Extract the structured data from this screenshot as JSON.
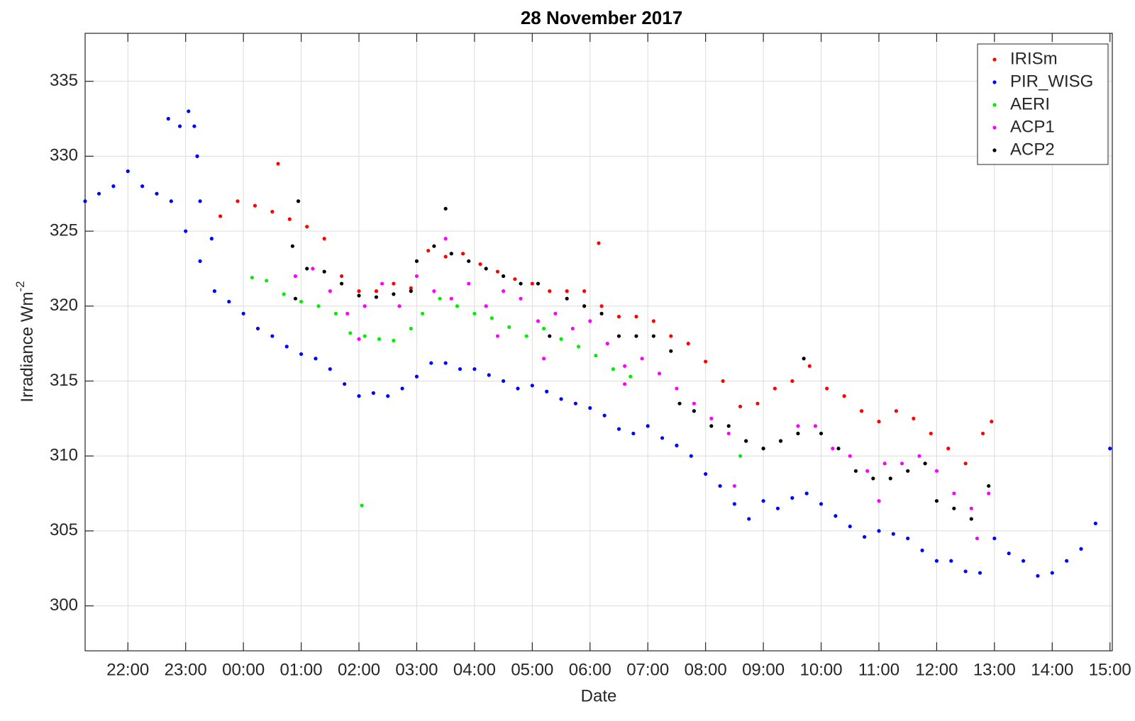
{
  "chart_data": {
    "type": "scatter",
    "title": "28 November 2017",
    "xlabel": "Date",
    "ylabel": "Irradiance Wm",
    "ylabel_superscript": "-2",
    "xlim": [
      -2.74,
      15.04
    ],
    "ylim": [
      297,
      338.2
    ],
    "xticks": [
      {
        "value": -2,
        "label": "22:00"
      },
      {
        "value": -1,
        "label": "23:00"
      },
      {
        "value": 0,
        "label": "00:00"
      },
      {
        "value": 1,
        "label": "01:00"
      },
      {
        "value": 2,
        "label": "02:00"
      },
      {
        "value": 3,
        "label": "03:00"
      },
      {
        "value": 4,
        "label": "04:00"
      },
      {
        "value": 5,
        "label": "05:00"
      },
      {
        "value": 6,
        "label": "06:00"
      },
      {
        "value": 7,
        "label": "07:00"
      },
      {
        "value": 8,
        "label": "08:00"
      },
      {
        "value": 9,
        "label": "09:00"
      },
      {
        "value": 10,
        "label": "10:00"
      },
      {
        "value": 11,
        "label": "11:00"
      },
      {
        "value": 12,
        "label": "12:00"
      },
      {
        "value": 13,
        "label": "13:00"
      },
      {
        "value": 14,
        "label": "14:00"
      },
      {
        "value": 15,
        "label": "15:00"
      }
    ],
    "yticks": [
      300,
      305,
      310,
      315,
      320,
      325,
      330,
      335
    ],
    "grid": true,
    "legend": "northeast",
    "series": [
      {
        "name": "IRISm",
        "color": "#ff0000",
        "x": [
          -0.4,
          -0.1,
          0.2,
          0.5,
          0.8,
          1.1,
          1.4,
          1.7,
          2.0,
          2.3,
          2.6,
          2.9,
          3.2,
          3.5,
          3.8,
          4.1,
          4.4,
          4.7,
          5.0,
          5.3,
          5.6,
          5.9,
          6.2,
          6.5,
          6.8,
          7.1,
          7.4,
          7.7,
          8.0,
          8.3,
          8.6,
          8.9,
          9.2,
          9.5,
          9.8,
          10.1,
          10.4,
          10.7,
          11.0,
          11.3,
          11.6,
          11.9,
          12.2,
          12.5,
          12.8,
          12.95,
          0.6,
          6.15
        ],
        "values": [
          326,
          327,
          326.7,
          326.3,
          325.8,
          325.3,
          324.5,
          322,
          321,
          321,
          321.5,
          321.2,
          323.7,
          323.3,
          323.5,
          322.8,
          322.3,
          321.8,
          321.5,
          321,
          321,
          321,
          320,
          319.3,
          319.3,
          319,
          318,
          317.5,
          316.3,
          315,
          313.3,
          313.5,
          314.5,
          315,
          316,
          314.5,
          314,
          313,
          312.3,
          313,
          312.5,
          311.5,
          310.5,
          309.5,
          311.5,
          312.3,
          329.5,
          324.2
        ]
      },
      {
        "name": "PIR_WISG",
        "color": "#0000ff",
        "x": [
          -2.74,
          -2.5,
          -2.25,
          -2,
          -1.75,
          -1.5,
          -1.25,
          -1.0,
          -0.75,
          -0.5,
          -0.25,
          0,
          0.25,
          0.5,
          0.75,
          1.0,
          1.25,
          1.5,
          1.75,
          2.0,
          2.25,
          2.5,
          2.75,
          3.0,
          3.25,
          3.5,
          3.75,
          4.0,
          4.25,
          4.5,
          4.75,
          5.0,
          5.25,
          5.5,
          5.75,
          6.0,
          6.25,
          6.5,
          6.75,
          7.0,
          7.25,
          7.5,
          7.75,
          8.0,
          8.25,
          8.5,
          8.75,
          9.0,
          9.25,
          9.5,
          9.75,
          10.0,
          10.25,
          10.5,
          10.75,
          11.0,
          11.25,
          11.5,
          11.75,
          12.0,
          12.25,
          12.5,
          12.75,
          13.0,
          13.25,
          13.5,
          13.75,
          14.0,
          14.25,
          14.5,
          14.75,
          15.0,
          -1.3,
          -1.1,
          -0.95,
          -0.85,
          -0.8,
          -0.75,
          -0.55
        ],
        "values": [
          327,
          327.5,
          328,
          329,
          328,
          327.5,
          327,
          325,
          323,
          321,
          320.3,
          319.5,
          318.5,
          318,
          317.3,
          316.8,
          316.5,
          315.8,
          314.8,
          314,
          314.2,
          314,
          314.5,
          315.3,
          316.2,
          316.2,
          315.8,
          315.8,
          315.4,
          315,
          314.5,
          314.7,
          314.3,
          313.8,
          313.5,
          313.2,
          312.7,
          311.8,
          311.5,
          312,
          311.2,
          310.7,
          310,
          308.8,
          308,
          306.8,
          305.8,
          307,
          306.5,
          307.2,
          307.5,
          306.8,
          306,
          305.3,
          304.6,
          305,
          304.8,
          304.5,
          303.7,
          303,
          303,
          302.3,
          302.2,
          304.5,
          303.5,
          303,
          302,
          302.2,
          303,
          303.8,
          305.5,
          310.5,
          332.5,
          332,
          333,
          332,
          330,
          327,
          324.5
        ]
      },
      {
        "name": "AERI",
        "color": "#00ee00",
        "x": [
          0.15,
          0.4,
          0.7,
          1.0,
          1.3,
          1.6,
          1.85,
          2.1,
          2.35,
          2.6,
          2.9,
          3.1,
          3.4,
          3.7,
          4.0,
          4.3,
          4.6,
          4.9,
          5.2,
          5.5,
          5.8,
          6.1,
          6.4,
          6.7,
          2.05,
          8.6
        ],
        "values": [
          321.9,
          321.7,
          320.8,
          320.3,
          320,
          319.5,
          318.2,
          318,
          317.8,
          317.7,
          318.5,
          319.5,
          320.5,
          320,
          319.5,
          319.2,
          318.6,
          318,
          318.5,
          317.8,
          317.3,
          316.7,
          315.8,
          315.3,
          306.7,
          310
        ]
      },
      {
        "name": "ACP1",
        "color": "#ff00ff",
        "x": [
          0.9,
          1.2,
          1.5,
          1.8,
          2.1,
          2.4,
          2.7,
          3.0,
          3.3,
          3.6,
          3.9,
          4.2,
          4.5,
          4.8,
          5.1,
          5.4,
          5.7,
          6.0,
          6.3,
          6.6,
          6.9,
          7.2,
          7.5,
          7.8,
          8.1,
          8.4,
          8.7,
          9.0,
          9.3,
          9.6,
          9.9,
          10.2,
          10.5,
          10.8,
          11.1,
          11.4,
          11.7,
          12.0,
          12.3,
          12.6,
          12.9,
          2.0,
          3.5,
          4.4,
          5.2,
          6.6,
          8.5,
          11.0,
          12.7
        ],
        "values": [
          322,
          322.5,
          321,
          319.5,
          320,
          321.5,
          320,
          322,
          321,
          320.5,
          321.5,
          320,
          321,
          320.5,
          319,
          319.5,
          318.5,
          319,
          317.5,
          316,
          316.5,
          315.5,
          314.5,
          313.5,
          312.5,
          311.5,
          311,
          310.5,
          311,
          312,
          312,
          310.5,
          310,
          309,
          309.5,
          309.5,
          310,
          309,
          307.5,
          306.5,
          307.5,
          317.8,
          324.5,
          318,
          316.5,
          314.8,
          308,
          307,
          304.5
        ]
      },
      {
        "name": "ACP2",
        "color": "#000000",
        "x": [
          0.85,
          0.9,
          1.1,
          1.4,
          1.7,
          2.0,
          2.3,
          2.6,
          2.9,
          3.0,
          3.3,
          3.6,
          3.9,
          4.2,
          4.5,
          4.8,
          5.1,
          5.3,
          5.6,
          5.9,
          6.2,
          6.5,
          6.8,
          7.1,
          7.4,
          7.55,
          7.8,
          8.1,
          8.4,
          8.7,
          9.0,
          9.3,
          9.6,
          9.7,
          10.0,
          10.3,
          10.6,
          10.9,
          11.2,
          11.5,
          11.8,
          12.0,
          12.3,
          12.6,
          12.9,
          3.5,
          0.95
        ],
        "values": [
          324,
          320.5,
          322.5,
          322.3,
          321.5,
          320.7,
          320.6,
          320.8,
          321,
          323,
          324,
          323.5,
          323,
          322.5,
          322,
          321.5,
          321.5,
          318,
          320.5,
          320,
          319.5,
          318,
          318,
          318,
          317,
          313.5,
          313,
          312,
          312,
          311,
          310.5,
          311,
          311.5,
          316.5,
          311.5,
          310.5,
          309,
          308.5,
          308.5,
          309,
          309.5,
          307,
          306.5,
          305.8,
          308,
          326.5,
          327
        ]
      }
    ]
  }
}
